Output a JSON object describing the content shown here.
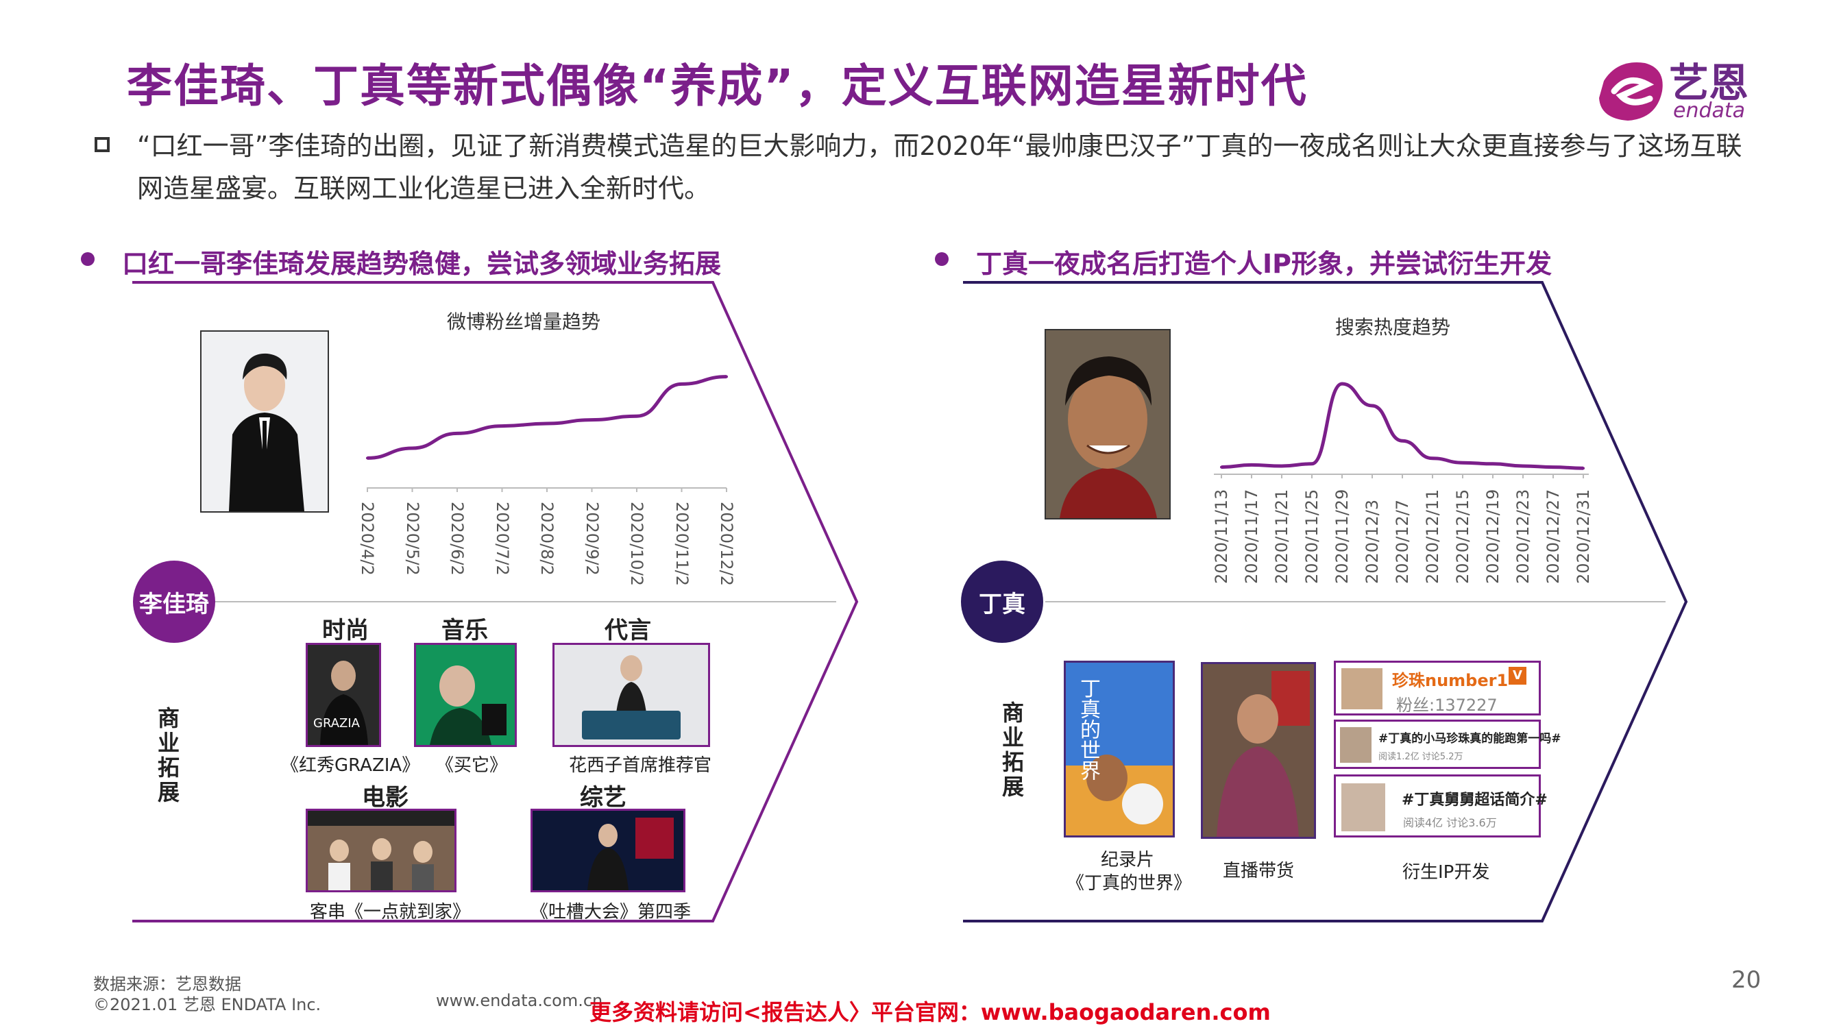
{
  "header": {
    "title": "李佳琦、丁真等新式偶像“养成”，定义互联网造星新时代",
    "logo_cn": "艺恩",
    "logo_en": "endata"
  },
  "intro": "“口红一哥”李佳琦的出圈，见证了新消费模式造星的巨大影响力，而2020年“最帅康巴汉子”丁真的一夜成名则让大众更直接参与了这场互联网造星盛宴。互联网工业化造星已进入全新时代。",
  "left": {
    "heading": "口红一哥李佳琦发展趋势稳健，尝试多领域业务拓展",
    "person": "李佳琦",
    "expand_label": "商业拓展",
    "categories": {
      "fashion": "时尚",
      "music": "音乐",
      "endorse": "代言",
      "film": "电影",
      "variety": "综艺"
    },
    "captions": {
      "fashion": "《红秀GRAZIA》",
      "music": "《买它》",
      "endorse": "花西子首席推荐官",
      "film": "客串《一点就到家》",
      "variety": "《吐槽大会》第四季"
    }
  },
  "right": {
    "heading": "丁真一夜成名后打造个人IP形象，并尝试衍生开发",
    "person": "丁真",
    "expand_label": "商业拓展",
    "captions": {
      "doc_line1": "纪录片",
      "doc_line2": "《丁真的世界》",
      "live": "直播带货",
      "ip": "衍生IP开发"
    },
    "doc_poster_text": "丁真的世界",
    "weibo": {
      "name": "珍珠number1",
      "fans": "粉丝:137227",
      "topic1": "#丁真的小马珍珠真的能跑第一吗#",
      "topic1_stats": "阅读1.2亿  讨论5.2万",
      "topic2": "#丁真舅舅超话简介#",
      "topic2_stats": "阅读4亿  讨论3.6万"
    }
  },
  "chart_data": [
    {
      "type": "line",
      "title": "微博粉丝增量趋势",
      "categories": [
        "2020/4/2",
        "2020/5/2",
        "2020/6/2",
        "2020/7/2",
        "2020/8/2",
        "2020/9/2",
        "2020/10/2",
        "2020/11/2",
        "2020/12/2"
      ],
      "values": [
        2,
        10,
        22,
        28,
        30,
        33,
        36,
        62,
        68
      ],
      "ylim": [
        0,
        100
      ],
      "xlabel": "",
      "ylabel": "",
      "grid": false
    },
    {
      "type": "line",
      "title": "搜索热度趋势",
      "categories": [
        "2020/11/13",
        "2020/11/17",
        "2020/11/21",
        "2020/11/25",
        "2020/11/29",
        "2020/12/3",
        "2020/12/7",
        "2020/12/11",
        "2020/12/15",
        "2020/12/19",
        "2020/12/23",
        "2020/12/27",
        "2020/12/31"
      ],
      "values": [
        4,
        6,
        5,
        7,
        80,
        60,
        28,
        12,
        8,
        7,
        5,
        4,
        3
      ],
      "ylim": [
        0,
        100
      ],
      "xlabel": "",
      "ylabel": "",
      "grid": false
    }
  ],
  "footer": {
    "source": "数据来源：艺恩数据",
    "copyright": "©2021.01 艺恩 ENDATA Inc.",
    "website": "www.endata.com.cn",
    "promo": "更多资料请访问<报告达人〉平台官网：www.baogaodaren.com",
    "page": "20"
  },
  "colors": {
    "accent": "#7b1f8a",
    "navy": "#2b1a5e",
    "promo": "#e0001a"
  }
}
